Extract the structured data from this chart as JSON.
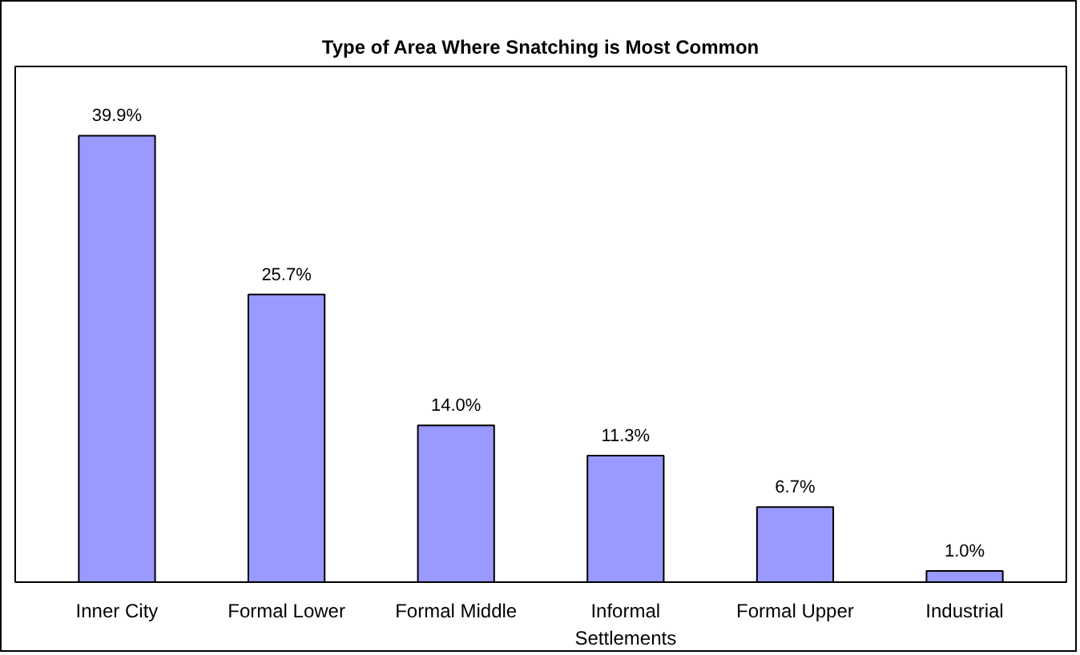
{
  "chart_data": {
    "type": "bar",
    "title": "Type of Area Where Snatching is Most Common",
    "categories": [
      "Inner City",
      "Formal Lower",
      "Formal Middle",
      "Informal Settlements",
      "Formal Upper",
      "Industrial"
    ],
    "values": [
      39.9,
      25.7,
      14.0,
      11.3,
      6.7,
      1.0
    ],
    "value_labels": [
      "39.9%",
      "25.7%",
      "14.0%",
      "11.3%",
      "6.7%",
      "1.0%"
    ],
    "color": "#9999ff",
    "grid": false
  }
}
